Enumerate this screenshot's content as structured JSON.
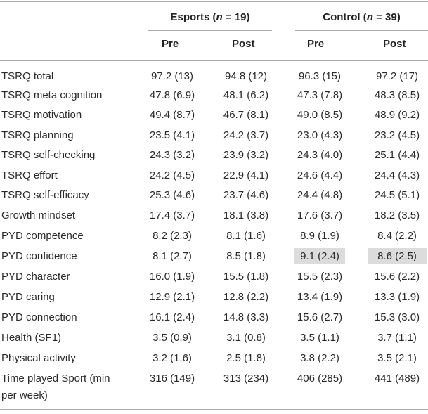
{
  "header": {
    "groups": [
      {
        "name": "Esports",
        "n_label": "n",
        "n_value": " = 19)"
      },
      {
        "name": "Control",
        "n_label": "n",
        "n_value": " = 39)"
      }
    ],
    "subheaders": [
      "Pre",
      "Post",
      "Pre",
      "Post"
    ]
  },
  "rows": [
    {
      "label": "TSRQ total",
      "values": [
        "97.2 (13)",
        "94.8 (12)",
        "96.3 (15)",
        "97.2 (17)"
      ]
    },
    {
      "label": "TSRQ meta cognition",
      "values": [
        "47.8 (6.9)",
        "48.1 (6.2)",
        "47.3 (7.8)",
        "48.3 (8.5)"
      ]
    },
    {
      "label": "TSRQ motivation",
      "values": [
        "49.4 (8.7)",
        "46.7 (8.1)",
        "49.0 (8.5)",
        "48.9 (9.2)"
      ]
    },
    {
      "label": "TSRQ planning",
      "values": [
        "23.5 (4.1)",
        "24.2 (3.7)",
        "23.0 (4.3)",
        "23.2 (4.5)"
      ]
    },
    {
      "label": "TSRQ self-checking",
      "values": [
        "24.3 (3.2)",
        "23.9 (3.2)",
        "24.3 (4.0)",
        "25.1 (4.4)"
      ]
    },
    {
      "label": "TSRQ effort",
      "values": [
        "24.2 (4.5)",
        "22.9 (4.1)",
        "24.6 (4.4)",
        "24.4 (4.3)"
      ]
    },
    {
      "label": "TSRQ self-efficacy",
      "values": [
        "25.3 (4.6)",
        "23.7 (4.6)",
        "24.4 (4.8)",
        "24.5 (5.1)"
      ]
    },
    {
      "label": "Growth mindset",
      "values": [
        "17.4 (3.7)",
        "18.1 (3.8)",
        "17.6 (3.7)",
        "18.2 (3.5)"
      ]
    },
    {
      "label": "PYD competence",
      "values": [
        "8.2 (2.3)",
        "8.1 (1.6)",
        "8.9 (1.9)",
        "8.4 (2.2)"
      ]
    },
    {
      "label": "PYD confidence",
      "values": [
        "8.1 (2.7)",
        "8.5 (1.8)",
        "9.1 (2.4)",
        "8.6 (2.5)"
      ],
      "highlighted": [
        false,
        false,
        true,
        true
      ]
    },
    {
      "label": "PYD character",
      "values": [
        "16.0 (1.9)",
        "15.5 (1.8)",
        "15.5 (2.3)",
        "15.6 (2.2)"
      ]
    },
    {
      "label": "PYD caring",
      "values": [
        "12.9 (2.1)",
        "12.8 (2.2)",
        "13.4 (1.9)",
        "13.3 (1.9)"
      ]
    },
    {
      "label": "PYD connection",
      "values": [
        "16.1 (2.4)",
        "14.8 (3.3)",
        "15.6 (2.7)",
        "15.3 (3.0)"
      ]
    },
    {
      "label": "Health (SF1)",
      "values": [
        "3.5 (0.9)",
        "3.1 (0.8)",
        "3.5 (1.1)",
        "3.7 (1.1)"
      ]
    },
    {
      "label": "Physical activity",
      "values": [
        "3.2 (1.6)",
        "2.5 (1.8)",
        "3.8 (2.2)",
        "3.5 (2.1)"
      ]
    },
    {
      "label": "Time played Sport (min per week)",
      "label_lines": [
        "Time played Sport (min",
        "per week)"
      ],
      "values": [
        "316 (149)",
        "313 (234)",
        "406 (285)",
        "441 (489)"
      ]
    }
  ],
  "colors": {
    "rule": "#a9a9a9",
    "highlight": "#dcdcdc"
  }
}
